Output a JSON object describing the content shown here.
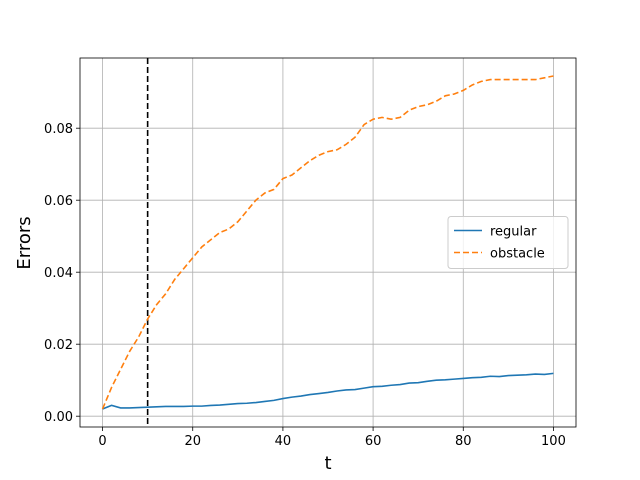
{
  "chart_data": {
    "type": "line",
    "xlabel": "t",
    "ylabel": "Errors",
    "x": [
      0,
      2,
      4,
      6,
      8,
      10,
      12,
      14,
      16,
      18,
      20,
      22,
      24,
      26,
      28,
      30,
      32,
      34,
      36,
      38,
      40,
      42,
      44,
      46,
      48,
      50,
      52,
      54,
      56,
      58,
      60,
      62,
      64,
      66,
      68,
      70,
      72,
      74,
      76,
      78,
      80,
      82,
      84,
      86,
      88,
      90,
      92,
      94,
      96,
      98,
      100
    ],
    "series": [
      {
        "name": "regular",
        "color": "#1f77b4",
        "dash": "solid",
        "values": [
          0.002,
          0.003,
          0.0023,
          0.0023,
          0.0024,
          0.0025,
          0.0026,
          0.0027,
          0.0027,
          0.0027,
          0.0028,
          0.0028,
          0.003,
          0.0031,
          0.0033,
          0.0035,
          0.0036,
          0.0038,
          0.0041,
          0.0044,
          0.0049,
          0.0053,
          0.0056,
          0.006,
          0.0063,
          0.0066,
          0.007,
          0.0073,
          0.0074,
          0.0078,
          0.0082,
          0.0083,
          0.0086,
          0.0088,
          0.0092,
          0.0093,
          0.0097,
          0.01,
          0.0101,
          0.0103,
          0.0105,
          0.0107,
          0.0108,
          0.0111,
          0.011,
          0.0113,
          0.0114,
          0.0115,
          0.0117,
          0.0116,
          0.0119
        ]
      },
      {
        "name": "obstacle",
        "color": "#ff7f0e",
        "dash": "dashed",
        "values": [
          0.002,
          0.008,
          0.013,
          0.018,
          0.022,
          0.027,
          0.031,
          0.034,
          0.038,
          0.041,
          0.044,
          0.047,
          0.049,
          0.051,
          0.052,
          0.054,
          0.057,
          0.06,
          0.062,
          0.063,
          0.066,
          0.067,
          0.069,
          0.071,
          0.0725,
          0.0735,
          0.074,
          0.0755,
          0.0775,
          0.081,
          0.0825,
          0.083,
          0.0825,
          0.083,
          0.085,
          0.086,
          0.0865,
          0.0875,
          0.089,
          0.0895,
          0.0905,
          0.092,
          0.093,
          0.0935,
          0.0935,
          0.0935,
          0.0935,
          0.0935,
          0.0935,
          0.094,
          0.0945
        ]
      }
    ],
    "vline": 10,
    "xlim": [
      -5,
      105
    ],
    "ylim": [
      -0.003,
      0.0995
    ],
    "xticks": [
      0,
      20,
      40,
      60,
      80,
      100
    ],
    "yticks": [
      {
        "value": 0,
        "label": "0.00"
      },
      0.02,
      0.04,
      0.06,
      0.08
    ],
    "grid": true,
    "legend": "center right"
  }
}
